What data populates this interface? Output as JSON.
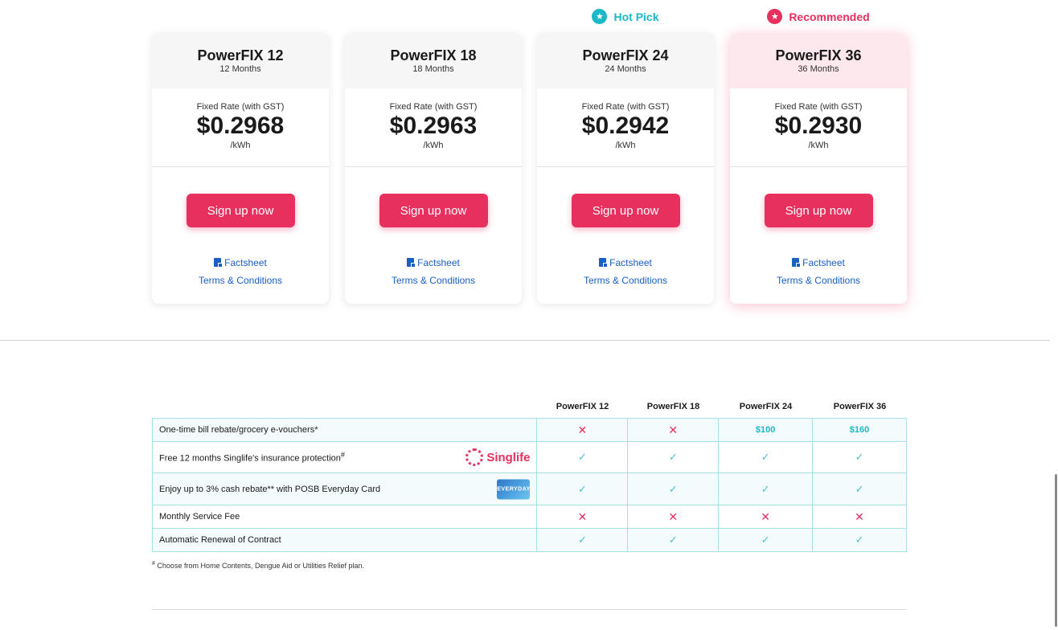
{
  "plans": [
    {
      "badge": "",
      "name": "PowerFIX 12",
      "term": "12 Months",
      "rate_label": "Fixed Rate (with GST)",
      "rate": "$0.2968",
      "unit": "/kWh",
      "signup": "Sign up now",
      "factsheet": "Factsheet",
      "terms": "Terms & Conditions"
    },
    {
      "badge": "",
      "name": "PowerFIX 18",
      "term": "18 Months",
      "rate_label": "Fixed Rate (with GST)",
      "rate": "$0.2963",
      "unit": "/kWh",
      "signup": "Sign up now",
      "factsheet": "Factsheet",
      "terms": "Terms & Conditions"
    },
    {
      "badge": "Hot Pick",
      "name": "PowerFIX 24",
      "term": "24 Months",
      "rate_label": "Fixed Rate (with GST)",
      "rate": "$0.2942",
      "unit": "/kWh",
      "signup": "Sign up now",
      "factsheet": "Factsheet",
      "terms": "Terms & Conditions"
    },
    {
      "badge": "Recommended",
      "name": "PowerFIX 36",
      "term": "36 Months",
      "rate_label": "Fixed Rate (with GST)",
      "rate": "$0.2930",
      "unit": "/kWh",
      "signup": "Sign up now",
      "factsheet": "Factsheet",
      "terms": "Terms & Conditions"
    }
  ],
  "colors": {
    "accent": "#e8305f",
    "teal": "#1bb8c8",
    "link": "#1a5fc4"
  },
  "comparison": {
    "columns": [
      "PowerFIX 12",
      "PowerFIX 18",
      "PowerFIX 24",
      "PowerFIX 36"
    ],
    "rows": [
      {
        "feature": "One-time bill rebate/grocery e-vouchers*",
        "values": [
          "cross",
          "cross",
          "$100",
          "$160"
        ]
      },
      {
        "feature": "Free 12 months Singlife's insurance protection",
        "feature_sup": "#",
        "logo_text": "Singlife",
        "values": [
          "tick",
          "tick",
          "tick",
          "tick"
        ]
      },
      {
        "feature": "Enjoy up to 3% cash rebate** with POSB Everyday Card",
        "card_text": "EVERYDAY",
        "values": [
          "tick",
          "tick",
          "tick",
          "tick"
        ]
      },
      {
        "feature": "Monthly Service Fee",
        "values": [
          "cross",
          "cross",
          "cross",
          "cross"
        ]
      },
      {
        "feature": "Automatic Renewal of Contract",
        "values": [
          "tick",
          "tick",
          "tick",
          "tick"
        ]
      }
    ]
  },
  "footnote": {
    "mark": "#",
    "text": "Choose from Home Contents, Dengue Aid or Utilities Relief plan."
  }
}
